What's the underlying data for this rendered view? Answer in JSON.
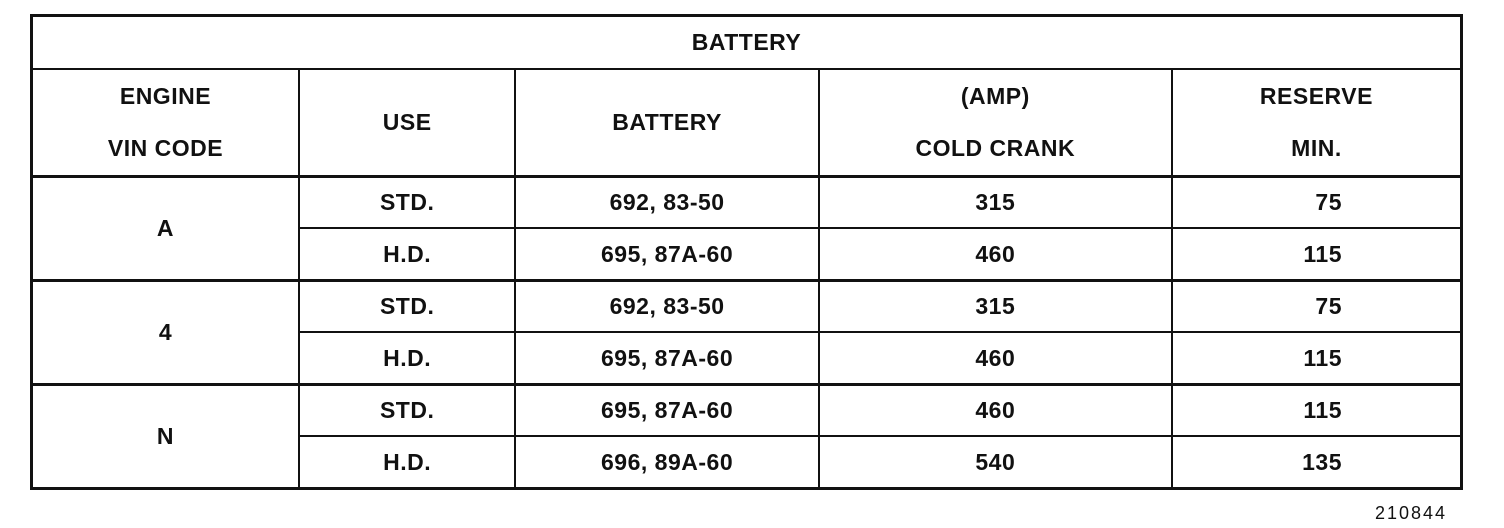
{
  "title": "BATTERY",
  "headers": [
    "ENGINE\nVIN CODE",
    "USE",
    "BATTERY",
    "(AMP)\nCOLD CRANK",
    "RESERVE\nMIN."
  ],
  "groups": [
    {
      "vin": "A",
      "rows": [
        {
          "use": "STD.",
          "battery": "692, 83-50",
          "cold_crank": "315",
          "reserve": "75"
        },
        {
          "use": "H.D.",
          "battery": "695, 87A-60",
          "cold_crank": "460",
          "reserve": "115"
        }
      ]
    },
    {
      "vin": "4",
      "rows": [
        {
          "use": "STD.",
          "battery": "692, 83-50",
          "cold_crank": "315",
          "reserve": "75"
        },
        {
          "use": "H.D.",
          "battery": "695, 87A-60",
          "cold_crank": "460",
          "reserve": "115"
        }
      ]
    },
    {
      "vin": "N",
      "rows": [
        {
          "use": "STD.",
          "battery": "695, 87A-60",
          "cold_crank": "460",
          "reserve": "115"
        },
        {
          "use": "H.D.",
          "battery": "696, 89A-60",
          "cold_crank": "540",
          "reserve": "135"
        }
      ]
    }
  ],
  "figure_number": "210844"
}
